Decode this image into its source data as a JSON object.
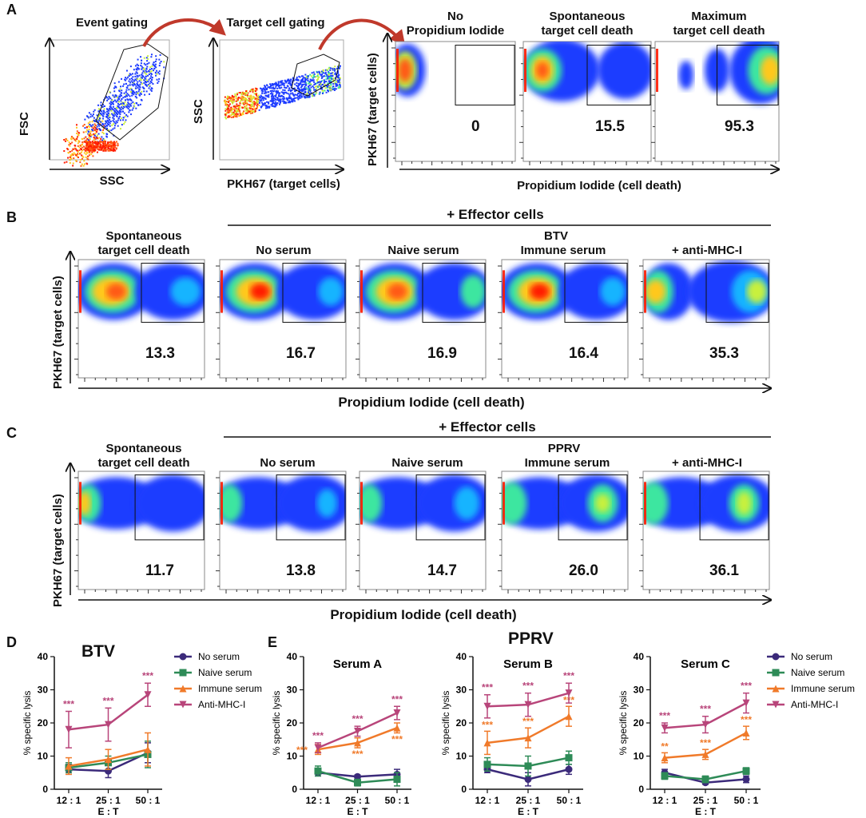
{
  "colors": {
    "arrow": "#c0392b",
    "no_serum": "#3b2a7a",
    "naive_serum": "#2e8b57",
    "immune_serum": "#f07a2a",
    "anti_mhc": "#b8457a",
    "density_low": "#1e3cff",
    "density_high": "#ff1a00"
  },
  "panelA": {
    "letter": "A",
    "event_gating": {
      "title": "Event gating",
      "xlabel": "SSC",
      "ylabel": "FSC"
    },
    "target_gating": {
      "title": "Target cell gating",
      "xlabel": "PKH67 (target cells)",
      "ylabel": "SSC"
    },
    "plots": [
      {
        "title": "No Propidium Iodide",
        "title_line1": "No",
        "title_line2": "Propidium Iodide",
        "value": "0"
      },
      {
        "title_line1": "Spontaneous",
        "title_line2": "target cell death",
        "value": "15.5"
      },
      {
        "title_line1": "Maximum",
        "title_line2": "target cell death",
        "value": "95.3"
      }
    ],
    "ylabel": "PKH67 (target cells)",
    "xlabel": "Propidium Iodide (cell death)"
  },
  "panelB": {
    "letter": "B",
    "effector_label": "+ Effector cells",
    "virus": "BTV",
    "plots": [
      {
        "title_line1": "Spontaneous",
        "title_line2": "target cell death",
        "value": "13.3"
      },
      {
        "title_line1": "",
        "title_line2": "No serum",
        "value": "16.7"
      },
      {
        "title_line1": "",
        "title_line2": "Naive serum",
        "value": "16.9"
      },
      {
        "title_line1": "",
        "title_line2": "Immune serum",
        "value": "16.4"
      },
      {
        "title_line1": "",
        "title_line2": "+ anti-MHC-I",
        "value": "35.3"
      }
    ],
    "ylabel": "PKH67 (target cells)",
    "xlabel": "Propidium Iodide (cell death)"
  },
  "panelC": {
    "letter": "C",
    "effector_label": "+ Effector cells",
    "virus": "PPRV",
    "plots": [
      {
        "title_line1": "Spontaneous",
        "title_line2": "target cell death",
        "value": "11.7"
      },
      {
        "title_line1": "",
        "title_line2": "No serum",
        "value": "13.8"
      },
      {
        "title_line1": "",
        "title_line2": "Naive serum",
        "value": "14.7"
      },
      {
        "title_line1": "",
        "title_line2": "Immune serum",
        "value": "26.0"
      },
      {
        "title_line1": "",
        "title_line2": "+ anti-MHC-I",
        "value": "36.1"
      }
    ],
    "ylabel": "PKH67 (target cells)",
    "xlabel": "Propidium Iodide (cell death)"
  },
  "panelD": {
    "letter": "D",
    "title": "BTV"
  },
  "panelE": {
    "letter": "E",
    "title": "PPRV"
  },
  "legend": [
    "No serum",
    "Naive serum",
    "Immune serum",
    "Anti-MHC-I"
  ],
  "chart_data": [
    {
      "type": "line",
      "title": "BTV",
      "subtitle": "",
      "categories": [
        "12 : 1",
        "25 : 1",
        "50 : 1"
      ],
      "xlabel": "E : T",
      "ylabel": "% specific lysis",
      "ylim": [
        0,
        40
      ],
      "yticks": [
        0,
        10,
        20,
        30,
        40
      ],
      "series": [
        {
          "name": "No serum",
          "values": [
            6,
            5.5,
            11
          ],
          "errors": [
            1.5,
            2,
            3
          ],
          "stars": [
            "",
            "",
            ""
          ]
        },
        {
          "name": "Naive serum",
          "values": [
            6.5,
            8,
            10.5
          ],
          "errors": [
            1.5,
            2,
            4
          ],
          "stars": [
            "",
            "",
            ""
          ]
        },
        {
          "name": "Immune serum",
          "values": [
            7,
            9,
            12
          ],
          "errors": [
            2.5,
            3,
            5
          ],
          "stars": [
            "",
            "",
            ""
          ]
        },
        {
          "name": "Anti-MHC-I",
          "values": [
            18,
            19.5,
            28.5
          ],
          "errors": [
            5.5,
            5,
            3.5
          ],
          "stars": [
            "***",
            "***",
            "***"
          ]
        }
      ]
    },
    {
      "type": "line",
      "title": "Serum A",
      "categories": [
        "12 : 1",
        "25 : 1",
        "50 : 1"
      ],
      "xlabel": "E : T",
      "ylabel": "% specific lysis",
      "ylim": [
        0,
        40
      ],
      "yticks": [
        0,
        10,
        20,
        30,
        40
      ],
      "series": [
        {
          "name": "No serum",
          "values": [
            5,
            3.8,
            4.5
          ],
          "errors": [
            1,
            0.5,
            1.5
          ],
          "stars": [
            "",
            "",
            ""
          ]
        },
        {
          "name": "Naive serum",
          "values": [
            5.5,
            2,
            3
          ],
          "errors": [
            1.5,
            1,
            2
          ],
          "stars": [
            "",
            "",
            ""
          ]
        },
        {
          "name": "Immune serum",
          "values": [
            12,
            14,
            18.5
          ],
          "errors": [
            1.5,
            1.5,
            1.5
          ],
          "stars": [
            "***",
            "***",
            "***"
          ]
        },
        {
          "name": "Anti-MHC-I",
          "values": [
            12.5,
            17.5,
            23
          ],
          "errors": [
            1.5,
            1.5,
            2
          ],
          "stars": [
            "***",
            "***",
            "***"
          ]
        }
      ]
    },
    {
      "type": "line",
      "title": "Serum B",
      "categories": [
        "12 : 1",
        "25 : 1",
        "50 : 1"
      ],
      "xlabel": "E : T",
      "ylabel": "% specific lysis",
      "ylim": [
        0,
        40
      ],
      "yticks": [
        0,
        10,
        20,
        30,
        40
      ],
      "series": [
        {
          "name": "No serum",
          "values": [
            6,
            3,
            6
          ],
          "errors": [
            1,
            2,
            1.5
          ],
          "stars": [
            "",
            "",
            ""
          ]
        },
        {
          "name": "Naive serum",
          "values": [
            7.5,
            7,
            9.5
          ],
          "errors": [
            2,
            3,
            2
          ],
          "stars": [
            "",
            "",
            ""
          ]
        },
        {
          "name": "Immune serum",
          "values": [
            14,
            15.5,
            22
          ],
          "errors": [
            3.5,
            3,
            3
          ],
          "stars": [
            "***",
            "***",
            "***"
          ]
        },
        {
          "name": "Anti-MHC-I",
          "values": [
            25,
            25.5,
            29
          ],
          "errors": [
            3.5,
            3.5,
            3
          ],
          "stars": [
            "***",
            "***",
            "***"
          ]
        }
      ]
    },
    {
      "type": "line",
      "title": "Serum C",
      "categories": [
        "12 : 1",
        "25 : 1",
        "50 : 1"
      ],
      "xlabel": "E : T",
      "ylabel": "% specific lysis",
      "ylim": [
        0,
        40
      ],
      "yticks": [
        0,
        10,
        20,
        30,
        40
      ],
      "series": [
        {
          "name": "No serum",
          "values": [
            5,
            2,
            3
          ],
          "errors": [
            1,
            0.5,
            1
          ],
          "stars": [
            "",
            "",
            ""
          ]
        },
        {
          "name": "Naive serum",
          "values": [
            4,
            3,
            5.5
          ],
          "errors": [
            1,
            1,
            1
          ],
          "stars": [
            "",
            "",
            ""
          ]
        },
        {
          "name": "Immune serum",
          "values": [
            9.5,
            10.5,
            17
          ],
          "errors": [
            1.5,
            1.5,
            2
          ],
          "stars": [
            "**",
            "***",
            "***"
          ]
        },
        {
          "name": "Anti-MHC-I",
          "values": [
            18.5,
            19.5,
            26
          ],
          "errors": [
            1.5,
            2.5,
            3
          ],
          "stars": [
            "***",
            "***",
            "***"
          ]
        }
      ]
    }
  ]
}
